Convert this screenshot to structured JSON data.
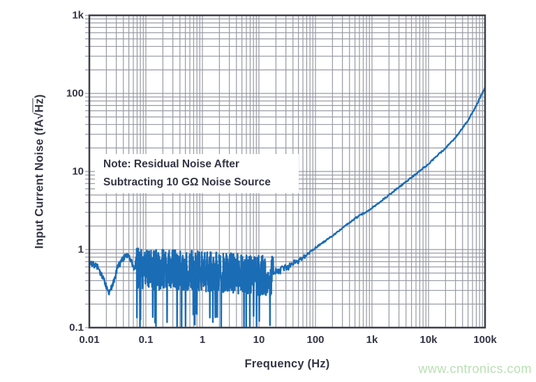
{
  "page": {
    "watermark_text": "www.cntronics.com"
  },
  "colors": {
    "curve": "#1a6cb5",
    "grid": "#989aa4",
    "axis_border": "#3c3e49",
    "text": "#333545",
    "watermark": "#b9e0b3",
    "note_background": "#ffffff"
  },
  "chart_data": {
    "type": "line",
    "title": "",
    "xlabel": "Frequency (Hz)",
    "ylabel": "Input Current Noise (fA√Hz)",
    "y_axis_label_parts": {
      "pre": "Input Current Noise (fA",
      "sqrt_symbol": "√",
      "radicand": "Hz",
      "post": ")"
    },
    "x_scale": "log",
    "y_scale": "log",
    "xlim": [
      0.01,
      100000
    ],
    "ylim": [
      0.1,
      1000
    ],
    "grid": "major and minor log gridlines, both axes",
    "legend": "none",
    "x_ticks": [
      {
        "v": 0.01,
        "label": "0.01"
      },
      {
        "v": 0.1,
        "label": "0.1"
      },
      {
        "v": 1,
        "label": "1"
      },
      {
        "v": 10,
        "label": "10"
      },
      {
        "v": 100,
        "label": "100"
      },
      {
        "v": 1000,
        "label": "1k"
      },
      {
        "v": 10000,
        "label": "10k"
      },
      {
        "v": 100000,
        "label": "100k"
      }
    ],
    "y_ticks": [
      {
        "v": 0.1,
        "label": "0.1"
      },
      {
        "v": 1,
        "label": "1"
      },
      {
        "v": 10,
        "label": "10"
      },
      {
        "v": 100,
        "label": "100"
      },
      {
        "v": 1000,
        "label": "1k"
      }
    ],
    "annotation": {
      "line1": "Note: Residual Noise After",
      "line2": "Subtracting 10 GΩ Noise Source"
    },
    "series": [
      {
        "name": "input-current-noise",
        "color": "#1a6cb5",
        "trend_points": [
          [
            0.01,
            0.68
          ],
          [
            0.014,
            0.6
          ],
          [
            0.018,
            0.42
          ],
          [
            0.022,
            0.27
          ],
          [
            0.027,
            0.38
          ],
          [
            0.032,
            0.6
          ],
          [
            0.04,
            0.78
          ],
          [
            0.05,
            0.84
          ],
          [
            0.06,
            0.6
          ],
          [
            0.07,
            0.62
          ],
          [
            0.1,
            0.58
          ],
          [
            0.3,
            0.58
          ],
          [
            1,
            0.55
          ],
          [
            3,
            0.53
          ],
          [
            8,
            0.5
          ],
          [
            15,
            0.48
          ],
          [
            25,
            0.55
          ],
          [
            40,
            0.65
          ],
          [
            70,
            0.85
          ],
          [
            100,
            1.05
          ],
          [
            200,
            1.5
          ],
          [
            300,
            1.9
          ],
          [
            500,
            2.5
          ],
          [
            700,
            2.9
          ],
          [
            1000,
            3.4
          ],
          [
            2000,
            5.0
          ],
          [
            3000,
            6.3
          ],
          [
            5000,
            8.4
          ],
          [
            7000,
            10.2
          ],
          [
            10000,
            12.5
          ],
          [
            20000,
            20
          ],
          [
            30000,
            27
          ],
          [
            50000,
            45
          ],
          [
            70000,
            70
          ],
          [
            100000,
            120
          ]
        ],
        "noise_band": {
          "f_start": 0.065,
          "f_end": 18,
          "dev_decades": 0.26,
          "down_spike_prob": 0.045,
          "down_spike_floor": 0.1,
          "up_spike_prob": 0.012
        }
      }
    ]
  }
}
